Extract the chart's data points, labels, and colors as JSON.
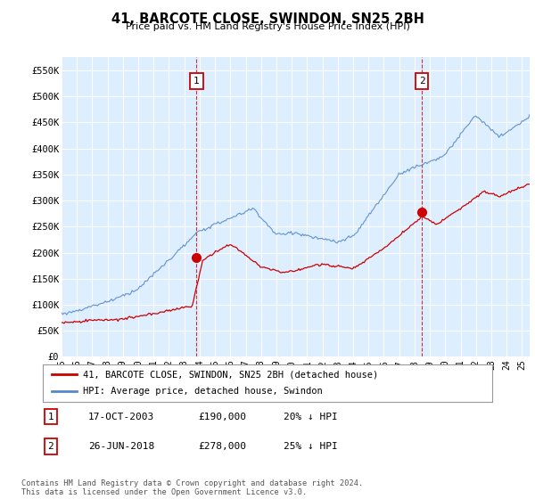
{
  "title": "41, BARCOTE CLOSE, SWINDON, SN25 2BH",
  "subtitle": "Price paid vs. HM Land Registry's House Price Index (HPI)",
  "ylim": [
    0,
    575000
  ],
  "yticks": [
    0,
    50000,
    100000,
    150000,
    200000,
    250000,
    300000,
    350000,
    400000,
    450000,
    500000,
    550000
  ],
  "ytick_labels": [
    "£0",
    "£50K",
    "£100K",
    "£150K",
    "£200K",
    "£250K",
    "£300K",
    "£350K",
    "£400K",
    "£450K",
    "£500K",
    "£550K"
  ],
  "background_color": "#ffffff",
  "plot_bg_color": "#ddeeff",
  "grid_color": "#ffffff",
  "hpi_color": "#5588cc",
  "price_color": "#cc0000",
  "sale1_x": 2003.79,
  "sale1_y": 190000,
  "sale2_x": 2018.48,
  "sale2_y": 278000,
  "legend_entries": [
    "41, BARCOTE CLOSE, SWINDON, SN25 2BH (detached house)",
    "HPI: Average price, detached house, Swindon"
  ],
  "table_rows": [
    [
      "1",
      "17-OCT-2003",
      "£190,000",
      "20% ↓ HPI"
    ],
    [
      "2",
      "26-JUN-2018",
      "£278,000",
      "25% ↓ HPI"
    ]
  ],
  "footer": "Contains HM Land Registry data © Crown copyright and database right 2024.\nThis data is licensed under the Open Government Licence v3.0.",
  "xmin": 1995,
  "xmax": 2025.5
}
